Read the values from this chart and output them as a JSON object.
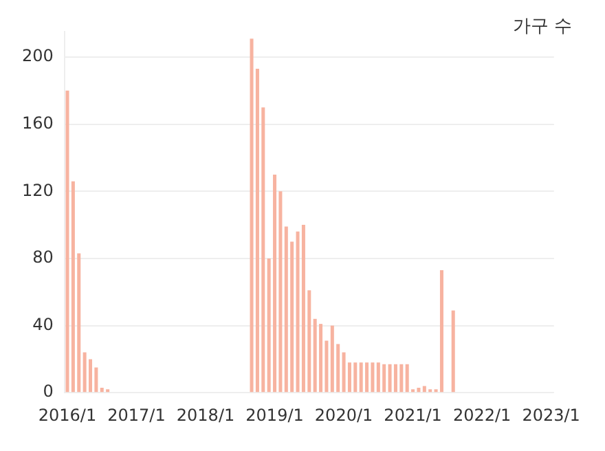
{
  "chart_data": {
    "type": "bar",
    "ylabel": "가구 수",
    "categories": [
      "2016/1",
      null,
      null,
      null,
      null,
      null,
      null,
      null,
      null,
      null,
      null,
      null,
      "2017/1",
      null,
      null,
      null,
      null,
      null,
      null,
      null,
      null,
      null,
      null,
      null,
      "2018/1",
      null,
      null,
      null,
      null,
      null,
      null,
      null,
      null,
      null,
      null,
      null,
      "2019/1",
      null,
      null,
      null,
      null,
      null,
      null,
      null,
      null,
      null,
      null,
      null,
      "2020/1",
      null,
      null,
      null,
      null,
      null,
      null,
      null,
      null,
      null,
      null,
      null,
      "2021/1",
      null,
      null,
      null,
      null,
      null,
      null,
      null,
      null,
      null,
      null,
      null,
      "2022/1",
      null,
      null,
      null,
      null,
      null,
      null,
      null,
      null,
      null,
      null,
      null,
      "2023/1"
    ],
    "values": [
      180,
      126,
      83,
      24,
      20,
      15,
      3,
      2,
      null,
      null,
      null,
      null,
      null,
      null,
      null,
      null,
      null,
      null,
      null,
      null,
      null,
      null,
      null,
      null,
      null,
      null,
      null,
      null,
      null,
      null,
      null,
      null,
      211,
      193,
      170,
      80,
      130,
      120,
      99,
      90,
      96,
      100,
      61,
      44,
      41,
      31,
      40,
      29,
      24,
      18,
      18,
      18,
      18,
      18,
      18,
      17,
      17,
      17,
      17,
      17,
      2,
      3,
      4,
      2,
      2,
      73,
      null,
      49,
      null,
      null,
      null,
      null,
      null,
      null,
      null,
      null,
      null,
      null,
      null,
      null,
      null,
      null,
      null,
      null,
      null
    ],
    "color": "#f7b3a0",
    "ylim": [
      0,
      215
    ],
    "yticks": [
      0,
      40,
      80,
      120,
      160,
      200
    ],
    "grid": "y",
    "legend": false
  }
}
